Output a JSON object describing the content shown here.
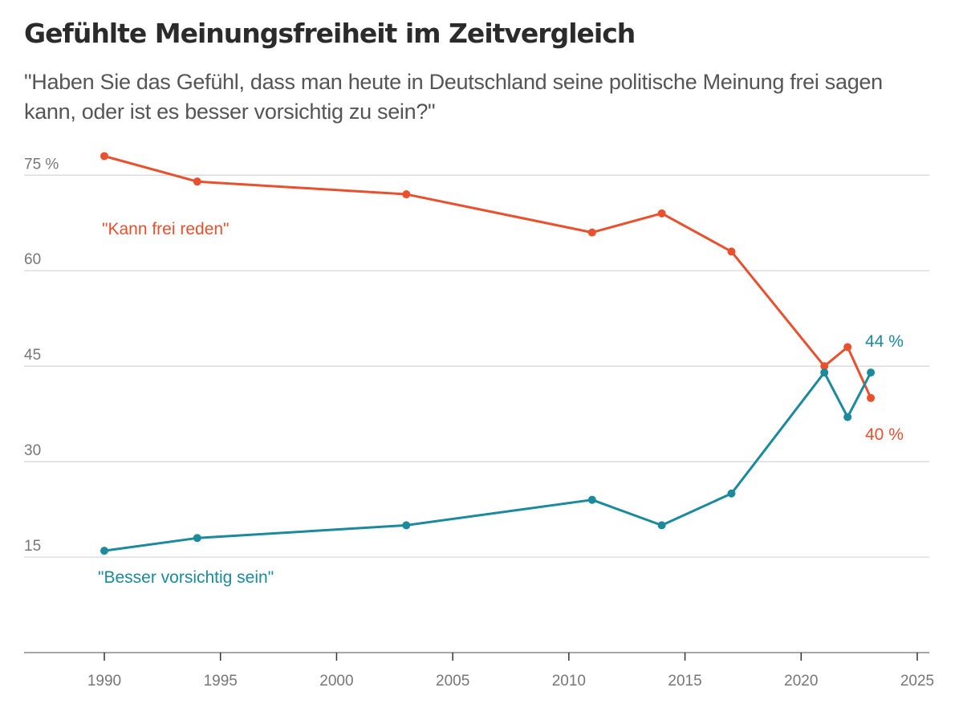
{
  "header": {
    "title": "Gefühlte Meinungsfreiheit im Zeitvergleich",
    "subtitle": "\"Haben Sie das Gefühl, dass man heute in Deutschland seine politische Meinung frei sagen kann, oder ist es besser vorsichtig zu sein?\""
  },
  "colors": {
    "kann_frei_reden": "#e8502e",
    "besser_vorsichtig": "#1a8a9c",
    "grid": "#d4d4d4",
    "axis_text": "#777777"
  },
  "chart_data": {
    "type": "line",
    "title": "Gefühlte Meinungsfreiheit im Zeitvergleich",
    "subtitle": "\"Haben Sie das Gefühl, dass man heute in Deutschland seine politische Meinung frei sagen kann, oder ist es besser vorsichtig zu sein?\"",
    "xlabel": "",
    "ylabel": "",
    "xlim": [
      1987,
      2025.5
    ],
    "ylim": [
      0,
      80
    ],
    "grid": true,
    "x_ticks": [
      1990,
      1995,
      2000,
      2005,
      2010,
      2015,
      2020,
      2025
    ],
    "x_tick_labels": [
      "1990",
      "1995",
      "2000",
      "2005",
      "2010",
      "2015",
      "2020",
      "2025"
    ],
    "y_ticks": [
      15,
      30,
      45,
      60,
      75
    ],
    "y_tick_labels": [
      "15",
      "30",
      "45",
      "60",
      "75 %"
    ],
    "x": [
      1990,
      1994,
      2003,
      2011,
      2014,
      2017,
      2021,
      2022,
      2023
    ],
    "series": [
      {
        "name": "\"Kann frei reden\"",
        "key": "kann_frei_reden",
        "values": [
          78,
          74,
          72,
          66,
          69,
          63,
          45,
          48,
          40
        ],
        "end_label": "40 %"
      },
      {
        "name": "\"Besser vorsichtig sein\"",
        "key": "besser_vorsichtig",
        "values": [
          16,
          18,
          20,
          24,
          20,
          25,
          44,
          37,
          44
        ],
        "end_label": "44 %"
      }
    ]
  }
}
